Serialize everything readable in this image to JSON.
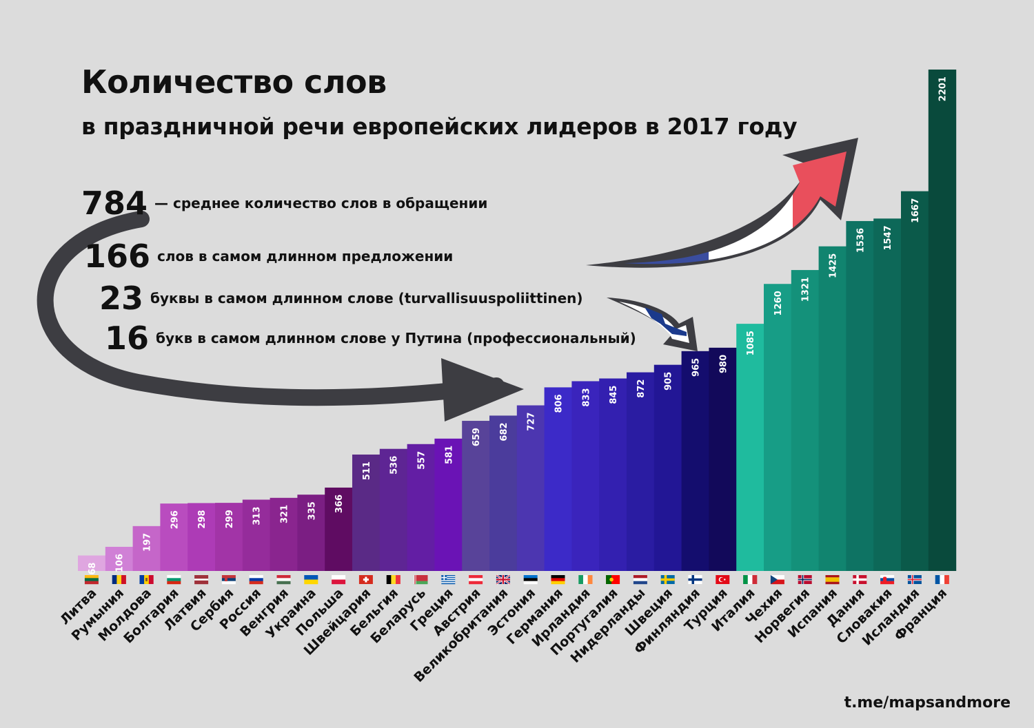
{
  "title": "Количество слов",
  "subtitle": "в праздничной речи европейских лидеров в 2017 году",
  "stats": [
    {
      "number": "784",
      "text": "— среднее количество слов в обращении"
    },
    {
      "number": "166",
      "text": "слов в самом длинном предложении"
    },
    {
      "number": "23",
      "text": "буквы в самом длинном слове (turvallisuuspoliittinen)"
    },
    {
      "number": "16",
      "text": "букв в самом длинном слове у Путина (профессиональный)"
    }
  ],
  "credit": "t.me/mapsandmore",
  "chart_data": {
    "type": "bar",
    "categories": [
      "Литва",
      "Румыния",
      "Молдова",
      "Болгария",
      "Латвия",
      "Сербия",
      "Россия",
      "Венгрия",
      "Украина",
      "Польша",
      "Швейцария",
      "Бельгия",
      "Беларусь",
      "Греция",
      "Австрия",
      "Великобритания",
      "Эстония",
      "Германия",
      "Ирландия",
      "Португалия",
      "Нидерланды",
      "Швеция",
      "Финляндия",
      "Турция",
      "Италия",
      "Чехия",
      "Норвегия",
      "Испания",
      "Дания",
      "Словакия",
      "Исландия",
      "Франция"
    ],
    "values": [
      68,
      106,
      197,
      296,
      298,
      299,
      313,
      321,
      335,
      366,
      511,
      536,
      557,
      581,
      659,
      682,
      727,
      806,
      833,
      845,
      872,
      905,
      965,
      980,
      1085,
      1260,
      1321,
      1425,
      1536,
      1547,
      1667,
      2201
    ],
    "data_labels": [
      "68",
      "106",
      "197",
      "296",
      "298",
      "299",
      "313",
      "321",
      "335",
      "366",
      "511",
      "536",
      "557",
      "581",
      "659",
      "682",
      "727",
      "806",
      "833",
      "845",
      "872",
      "905",
      "965",
      "980",
      "1085",
      "1260",
      "1321",
      "1425",
      "1536",
      "1547",
      "1667",
      "2201"
    ],
    "colors": [
      "#dfa6e0",
      "#d080d6",
      "#c566c9",
      "#b94cbf",
      "#ad3bb6",
      "#a234a7",
      "#952c9b",
      "#8a258f",
      "#7b1e83",
      "#5f0c62",
      "#5a2a86",
      "#5e2594",
      "#631ea4",
      "#6a13b5",
      "#584399",
      "#4b3c9c",
      "#4c36b0",
      "#3c2ac8",
      "#3a24bc",
      "#3320b0",
      "#2a1ca2",
      "#221695",
      "#140d6e",
      "#12095a",
      "#1fbb9e",
      "#179d86",
      "#14917a",
      "#11846f",
      "#0e7363",
      "#0d6858",
      "#0b5a4a",
      "#094a3c"
    ],
    "ylim": [
      0,
      2201
    ],
    "grid": false,
    "legend": "none"
  },
  "flags": [
    "lithuania-flag",
    "romania-flag",
    "moldova-flag",
    "bulgaria-flag",
    "latvia-flag",
    "serbia-flag",
    "russia-flag",
    "hungary-flag",
    "ukraine-flag",
    "poland-flag",
    "switzerland-flag",
    "belgium-flag",
    "belarus-flag",
    "greece-flag",
    "austria-flag",
    "uk-flag",
    "estonia-flag",
    "germany-flag",
    "ireland-flag",
    "portugal-flag",
    "netherlands-flag",
    "sweden-flag",
    "finland-flag",
    "turkey-flag",
    "italy-flag",
    "czechia-flag",
    "norway-flag",
    "spain-flag",
    "denmark-flag",
    "slovakia-flag",
    "iceland-flag",
    "france-flag"
  ],
  "decor": {
    "arrow_outline": "#3d3d42",
    "french_arrow": [
      "#3a4d9f",
      "#ffffff",
      "#e94f5c"
    ],
    "finnish_arrow": [
      "#ffffff",
      "#1b3a8c"
    ]
  }
}
